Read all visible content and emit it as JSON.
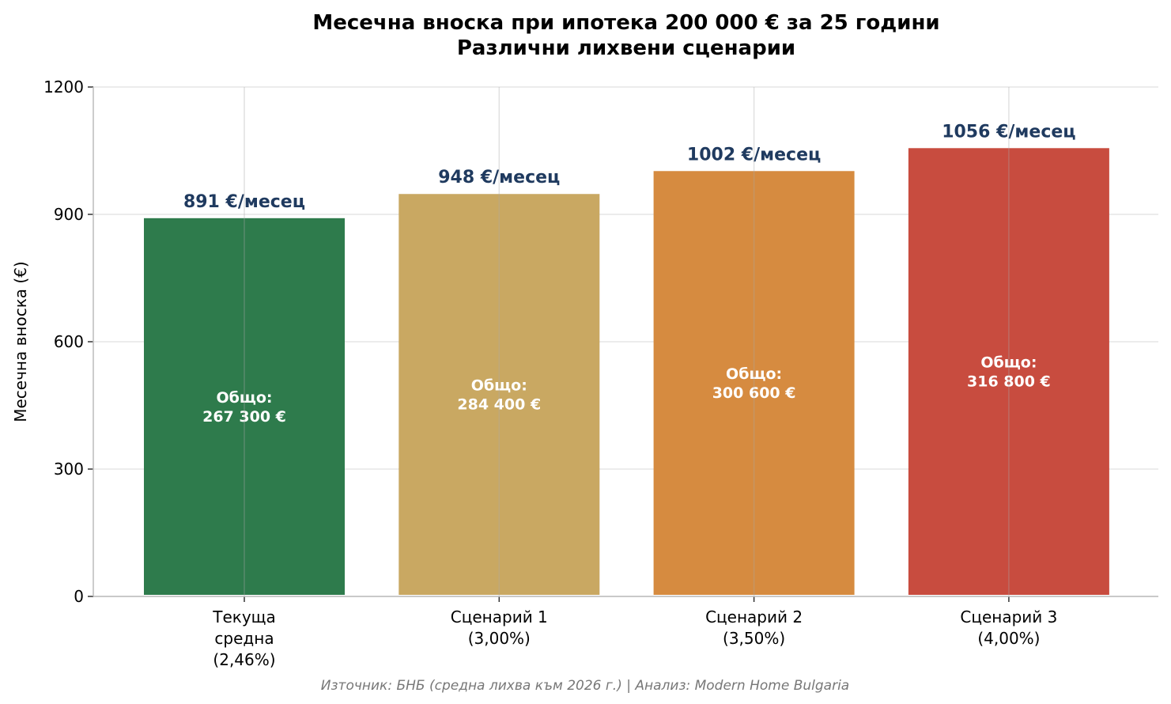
{
  "chart_data": {
    "type": "bar",
    "title": [
      "Месечна вноска при ипотека 200 000 € за 25 години",
      "Различни лихвени сценарии"
    ],
    "xlabel": "",
    "ylabel": "Месечна вноска (€)",
    "ylim": [
      0,
      1200
    ],
    "yticks": [
      0,
      300,
      600,
      900,
      1200
    ],
    "grid": true,
    "categories": [
      [
        "Текуща",
        "средна",
        "(2,46%)"
      ],
      [
        "Сценарий 1",
        "(3,00%)"
      ],
      [
        "Сценарий 2",
        "(3,50%)"
      ],
      [
        "Сценарий 3",
        "(4,00%)"
      ]
    ],
    "values": [
      891,
      948,
      1002,
      1056
    ],
    "value_labels": [
      "891 €/месец",
      "948 €/месец",
      "1002 €/месец",
      "1056 €/месец"
    ],
    "inner_labels": [
      [
        "Общо:",
        "267 300 €"
      ],
      [
        "Общо:",
        "284 400 €"
      ],
      [
        "Общо:",
        "300 600 €"
      ],
      [
        "Общо:",
        "316 800 €"
      ]
    ],
    "colors": [
      "#2e7b4c",
      "#c9a862",
      "#d68b40",
      "#c84c3f"
    ],
    "value_label_color": "#1f3a5f",
    "source": "Източник: БНБ (средна лихва към 2026 г.) | Анализ: Modern Home Bulgaria"
  }
}
